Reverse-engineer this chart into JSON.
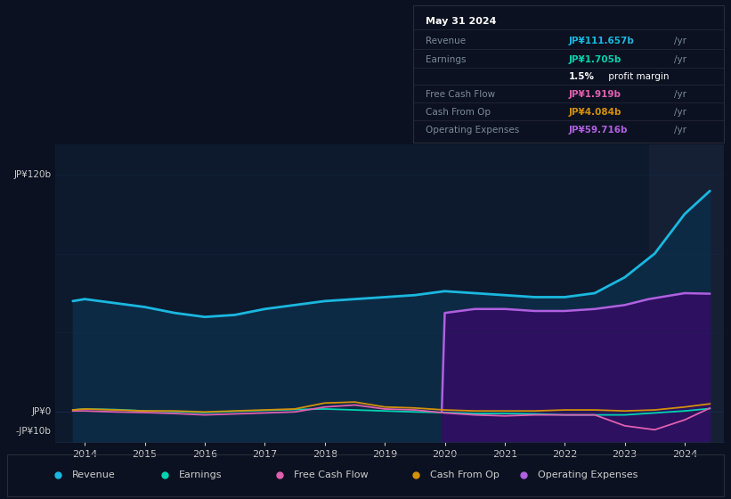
{
  "bg_color": "#0b1120",
  "plot_bg_color": "#0d1a2e",
  "title": "May 31 2024",
  "ylabel_120": "JP¥120b",
  "ylabel_0": "JP¥0",
  "ylabel_neg10": "-JP¥10b",
  "ylim": [
    -15,
    135
  ],
  "years": [
    2013.8,
    2014,
    2014.5,
    2015,
    2015.5,
    2016,
    2016.5,
    2017,
    2017.5,
    2018,
    2018.5,
    2019,
    2019.5,
    2020,
    2020.5,
    2021,
    2021.5,
    2022,
    2022.5,
    2023,
    2023.5,
    2024,
    2024.42
  ],
  "revenue": [
    56,
    57,
    55,
    53,
    50,
    48,
    49,
    52,
    54,
    56,
    57,
    58,
    59,
    61,
    60,
    59,
    58,
    58,
    60,
    68,
    80,
    100,
    111.657
  ],
  "earnings": [
    1.0,
    1.5,
    1.2,
    0.5,
    0.2,
    -0.3,
    0.3,
    0.8,
    1.2,
    1.5,
    1.0,
    0.5,
    0.0,
    -0.3,
    -0.8,
    -0.8,
    -1.0,
    -1.5,
    -1.5,
    -1.5,
    -0.5,
    0.5,
    1.705
  ],
  "free_cash_flow": [
    0.5,
    0.5,
    0.0,
    -0.3,
    -0.8,
    -1.5,
    -1.0,
    -0.5,
    0.0,
    2.5,
    3.5,
    1.5,
    1.0,
    -0.5,
    -1.5,
    -2.0,
    -1.5,
    -1.5,
    -1.5,
    -7.0,
    -9.0,
    -4.0,
    1.919
  ],
  "cash_from_op": [
    1.0,
    1.5,
    1.0,
    0.5,
    0.5,
    0.0,
    0.5,
    1.0,
    1.5,
    4.5,
    5.0,
    2.5,
    2.0,
    1.0,
    0.5,
    0.5,
    0.5,
    1.0,
    1.0,
    0.5,
    1.0,
    2.5,
    4.084
  ],
  "op_expenses_years": [
    2019.95,
    2020,
    2020.5,
    2021,
    2021.5,
    2022,
    2022.5,
    2023,
    2023.4,
    2024,
    2024.42
  ],
  "op_expenses": [
    0,
    50,
    52,
    52,
    51,
    51,
    52,
    54,
    57,
    60,
    59.716
  ],
  "revenue_color": "#1ab8e0",
  "revenue_fill": "#0d2a45",
  "earnings_color": "#00d4b0",
  "free_cash_flow_color": "#e060b0",
  "cash_from_op_color": "#d4900a",
  "op_expenses_color": "#b060e0",
  "op_expenses_fill": "#2d1060",
  "highlight_bg": "#152035",
  "grid_color": "#1a2e48",
  "tooltip_bg": "#08090e",
  "tooltip_border": "#2a2a3a",
  "text_light": "#cccccc",
  "text_dim": "#7a8a9a",
  "revenue_val_color": "#1ab8e0",
  "earnings_val_color": "#00d4b0",
  "free_cash_flow_val_color": "#e060b0",
  "cash_from_op_val_color": "#d4900a",
  "op_expenses_val_color": "#b060e0",
  "legend_items": [
    {
      "label": "Revenue",
      "color": "#1ab8e0"
    },
    {
      "label": "Earnings",
      "color": "#00d4b0"
    },
    {
      "label": "Free Cash Flow",
      "color": "#e060b0"
    },
    {
      "label": "Cash From Op",
      "color": "#d4900a"
    },
    {
      "label": "Operating Expenses",
      "color": "#b060e0"
    }
  ]
}
